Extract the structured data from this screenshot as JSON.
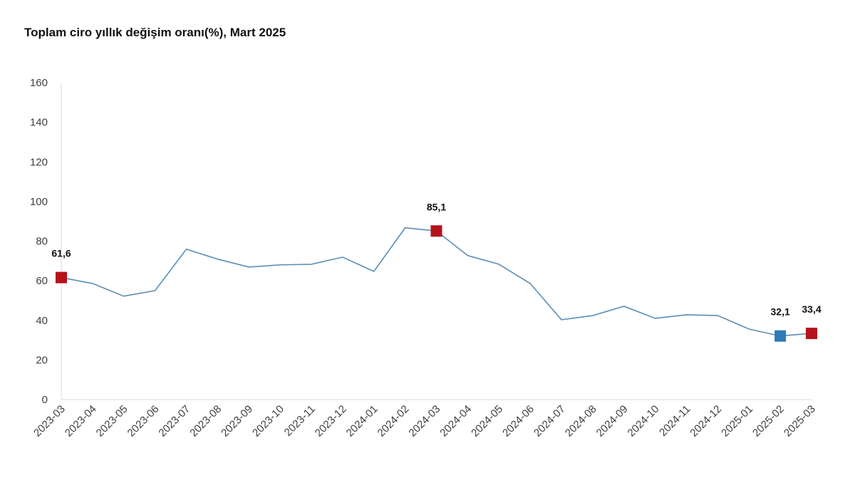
{
  "chart_data": {
    "type": "line",
    "title": "Toplam ciro yıllık değişim oranı(%), Mart 2025",
    "xlabel": "",
    "ylabel": "",
    "ylim": [
      0,
      160
    ],
    "yticks": [
      0,
      20,
      40,
      60,
      80,
      100,
      120,
      140,
      160
    ],
    "grid": false,
    "categories": [
      "2023-03",
      "2023-04",
      "2023-05",
      "2023-06",
      "2023-07",
      "2023-08",
      "2023-09",
      "2023-10",
      "2023-11",
      "2023-12",
      "2024-01",
      "2024-02",
      "2024-03",
      "2024-04",
      "2024-05",
      "2024-06",
      "2024-07",
      "2024-08",
      "2024-09",
      "2024-10",
      "2024-11",
      "2024-12",
      "2025-01",
      "2025-02",
      "2025-03"
    ],
    "series": [
      {
        "values": [
          61.6,
          58.6,
          52.2,
          55.0,
          75.9,
          70.9,
          66.9,
          68.0,
          68.3,
          71.9,
          64.7,
          86.7,
          85.1,
          72.7,
          68.3,
          58.6,
          40.3,
          42.4,
          47.1,
          41.0,
          42.8,
          42.4,
          35.6,
          32.1,
          33.4
        ],
        "color": "#5b8db5"
      }
    ],
    "highlighted_points": [
      {
        "category": "2023-03",
        "label": "61,6",
        "color": "#b5121b"
      },
      {
        "category": "2024-03",
        "label": "85,1",
        "color": "#b5121b"
      },
      {
        "category": "2025-02",
        "label": "32,1",
        "color": "#2e7bb8"
      },
      {
        "category": "2025-03",
        "label": "33,4",
        "color": "#b5121b"
      }
    ]
  }
}
